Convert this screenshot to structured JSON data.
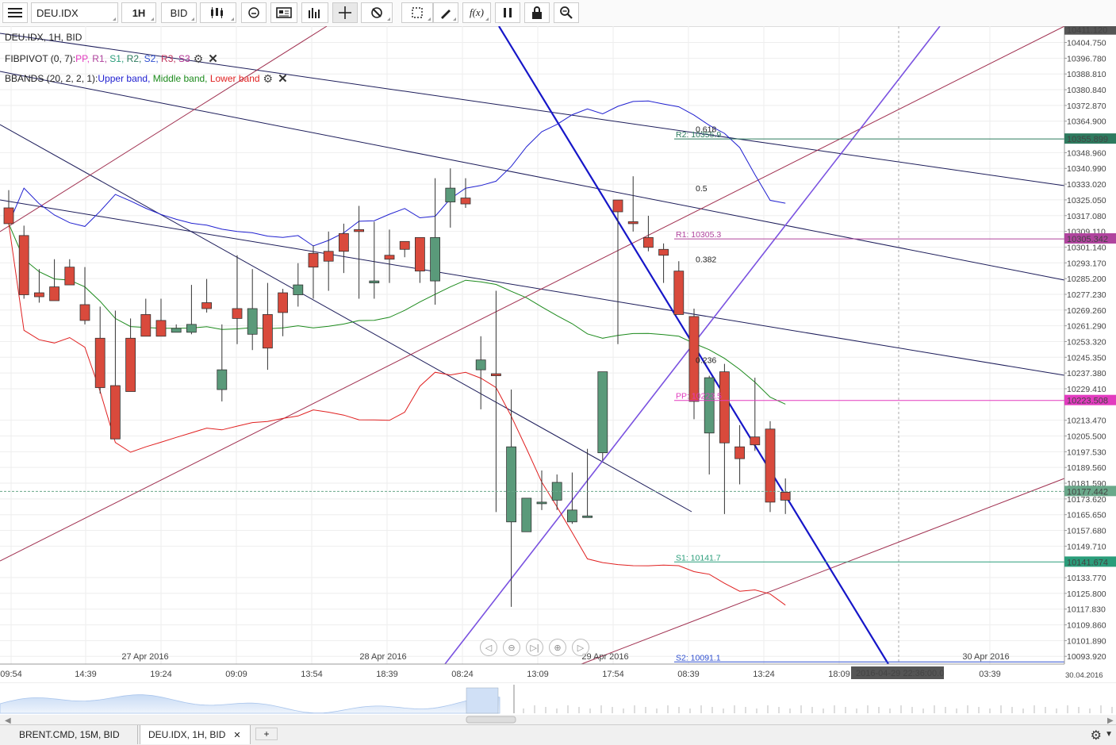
{
  "toolbar": {
    "instrument": "DEU.IDX",
    "period": "1H",
    "side": "BID"
  },
  "legend": {
    "title": "DEU.IDX, 1H, BID",
    "fibpivot_name": "FIBPIVOT (0, 7): ",
    "fibpivot_items": [
      {
        "label": "PP",
        "color": "#e23bbf"
      },
      {
        "label": "R1",
        "color": "#b0449e"
      },
      {
        "label": "S1",
        "color": "#2a9d7a"
      },
      {
        "label": "R2",
        "color": "#2d7a5e"
      },
      {
        "label": "S2",
        "color": "#3050d0"
      },
      {
        "label": "R3",
        "color": "#c0305a"
      },
      {
        "label": "S3",
        "color": "#b03090"
      }
    ],
    "bbands_name": "BBANDS (20, 2, 2, 1): ",
    "bbands_items": [
      {
        "label": "Upper band",
        "color": "#2020d0"
      },
      {
        "label": "Middle band",
        "color": "#1c8a1c"
      },
      {
        "label": "Lower band",
        "color": "#e02020"
      }
    ]
  },
  "chart_data": {
    "type": "candlestick",
    "instrument": "DEU.IDX",
    "timeframe": "1H",
    "ylim": [
      10090,
      10413
    ],
    "y_ticks": [
      "10404.750",
      "10396.780",
      "10388.810",
      "10380.840",
      "10372.870",
      "10364.900",
      "10348.960",
      "10340.990",
      "10333.020",
      "10325.050",
      "10317.080",
      "10309.110",
      "10301.140",
      "10293.170",
      "10285.200",
      "10277.230",
      "10269.260",
      "10261.290",
      "10253.320",
      "10245.350",
      "10237.380",
      "10229.410",
      "10213.470",
      "10205.500",
      "10197.530",
      "10189.560",
      "10181.590",
      "10173.620",
      "10165.650",
      "10157.680",
      "10149.710",
      "10133.770",
      "10125.800",
      "10117.830",
      "10109.860",
      "10101.890",
      "10093.920"
    ],
    "time_labels": [
      "09:54",
      "14:39",
      "19:24",
      "09:09",
      "13:54",
      "18:39",
      "08:24",
      "13:09",
      "17:54",
      "08:39",
      "13:24",
      "18:09",
      "03:39"
    ],
    "date_labels": [
      "27 Apr 2016",
      "28 Apr 2016",
      "29 Apr 2016",
      "30 Apr 2016"
    ],
    "corner_date": "30.04.2016",
    "cursor_time": "2016-04-29 22:36:00.0",
    "price_markers": [
      {
        "label": "10411.120",
        "value": 10411.12,
        "color": "#555555"
      },
      {
        "label": "10355.899",
        "value": 10355.899,
        "color": "#2d7a5e"
      },
      {
        "label": "10305.342",
        "value": 10305.342,
        "color": "#b0449e"
      },
      {
        "label": "10223.508",
        "value": 10223.508,
        "color": "#e23bbf"
      },
      {
        "label": "10177.442",
        "value": 10177.442,
        "color": "#6aa88a"
      },
      {
        "label": "10141.674",
        "value": 10141.674,
        "color": "#2a9d7a"
      }
    ],
    "pivots": [
      {
        "label": "R2: 10355.9",
        "value": 10355.9,
        "color": "#2d7a5e"
      },
      {
        "label": "R1: 10305.3",
        "value": 10305.3,
        "color": "#b0449e"
      },
      {
        "label": "PP: 10223.5",
        "value": 10223.5,
        "color": "#e23bbf"
      },
      {
        "label": "S1: 10141.7",
        "value": 10141.7,
        "color": "#2a9d7a"
      },
      {
        "label": "S2: 10091.1",
        "value": 10091.1,
        "color": "#3050d0"
      }
    ],
    "fib_labels": [
      {
        "label": "0.618",
        "value": 10361
      },
      {
        "label": "0.5",
        "value": 10331
      },
      {
        "label": "0.382",
        "value": 10295
      },
      {
        "label": "0.236",
        "value": 10244
      }
    ],
    "candles": [
      [
        0,
        10321,
        10330,
        10313,
        10348
      ],
      [
        1,
        10307,
        10312,
        10277,
        10275
      ],
      [
        2,
        10278,
        10290,
        10276,
        10273
      ],
      [
        3,
        10281,
        10295,
        10274,
        10278
      ],
      [
        4,
        10291,
        10295,
        10282,
        10285
      ],
      [
        5,
        10272,
        10291,
        10264,
        10262
      ],
      [
        6,
        10255,
        10271,
        10230,
        10227
      ],
      [
        7,
        10231,
        10269,
        10204,
        10222
      ],
      [
        8,
        10255,
        10265,
        10228,
        10228
      ],
      [
        9,
        10267,
        10275,
        10256,
        10261
      ],
      [
        10,
        10264,
        10275,
        10256,
        10259
      ],
      [
        11,
        10258,
        10262,
        10260,
        10260
      ],
      [
        12,
        10258,
        10282,
        10262,
        10257
      ],
      [
        13,
        10273,
        10285,
        10270,
        10268
      ],
      [
        14,
        10229,
        10262,
        10239,
        10223
      ],
      [
        15,
        10270,
        10297,
        10265,
        10252
      ],
      [
        16,
        10257,
        10290,
        10270,
        10249
      ],
      [
        17,
        10267,
        10283,
        10250,
        10239
      ],
      [
        18,
        10278,
        10280,
        10268,
        10256
      ],
      [
        19,
        10277,
        10293,
        10282,
        10271
      ],
      [
        20,
        10298,
        10302,
        10291,
        10275
      ],
      [
        21,
        10299,
        10309,
        10294,
        10279
      ],
      [
        22,
        10308,
        10313,
        10299,
        10288
      ],
      [
        23,
        10310,
        10322,
        10309,
        10275
      ],
      [
        24,
        10283,
        10314,
        10284,
        10275
      ],
      [
        25,
        10297,
        10310,
        10295,
        10283
      ],
      [
        26,
        10304,
        10302,
        10300,
        10296
      ],
      [
        27,
        10306,
        10299,
        10289,
        10283
      ],
      [
        28,
        10284,
        10336,
        10306,
        10272
      ],
      [
        29,
        10324,
        10341,
        10331,
        10311
      ],
      [
        30,
        10326,
        10336,
        10323,
        10321
      ],
      [
        31,
        10239,
        10256,
        10244,
        10219
      ],
      [
        32,
        10237,
        10279,
        10236,
        10167
      ],
      [
        33,
        10162,
        10229,
        10200,
        10119
      ],
      [
        34,
        10157,
        10167,
        10174,
        10166
      ],
      [
        35,
        10172,
        10188,
        10172,
        10168
      ],
      [
        36,
        10173,
        10186,
        10182,
        10168
      ],
      [
        37,
        10162,
        10187,
        10168,
        10161
      ],
      [
        38,
        10165,
        10199,
        10165,
        10167
      ],
      [
        39,
        10197,
        10231,
        10238,
        10193
      ],
      [
        40,
        10325,
        10256,
        10319,
        10252
      ],
      [
        41,
        10314,
        10337,
        10313,
        10309
      ],
      [
        42,
        10306,
        10317,
        10301,
        10299
      ],
      [
        43,
        10300,
        10303,
        10297,
        10283
      ],
      [
        44,
        10289,
        10294,
        10267,
        10267
      ],
      [
        45,
        10266,
        10270,
        10223,
        10214
      ],
      [
        46,
        10207,
        10236,
        10235,
        10186
      ],
      [
        47,
        10238,
        10242,
        10202,
        10166
      ],
      [
        48,
        10200,
        10211,
        10194,
        10181
      ],
      [
        49,
        10205,
        10235,
        10201,
        10198
      ],
      [
        50,
        10209,
        10213,
        10172,
        10167
      ],
      [
        51,
        10177,
        10184,
        10173,
        10166
      ]
    ],
    "overview_tabs": [
      "BRENT.CMD, 15M, BID",
      "DEU.IDX, 1H, BID"
    ]
  }
}
